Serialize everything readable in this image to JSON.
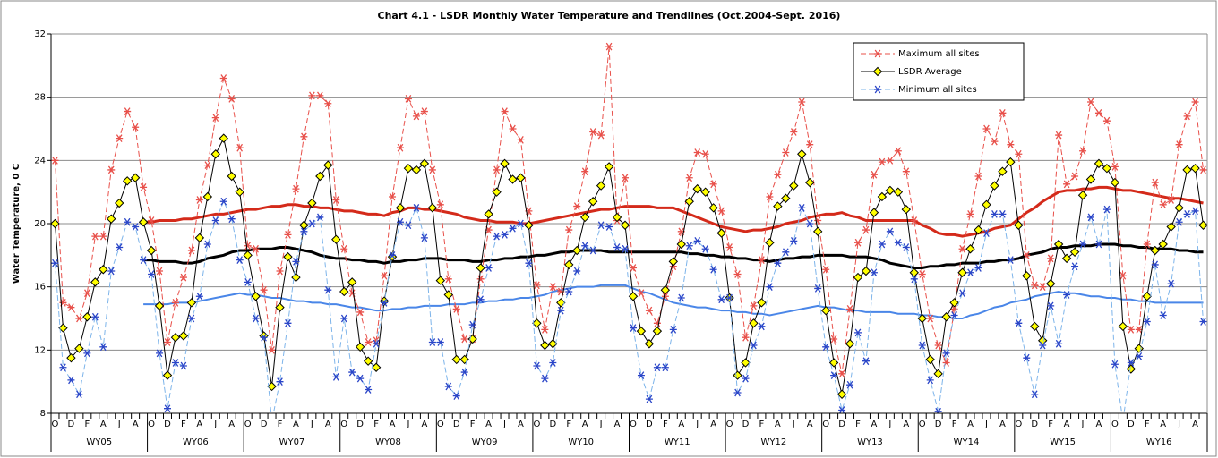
{
  "chart_data": {
    "type": "line",
    "title": "Chart 4.1 - LSDR Monthly Water Temperature and Trendlines (Oct.2004-Sept. 2016)",
    "y_label": "Water Temperature, 0 C",
    "categories": [
      "O",
      null,
      "D",
      null,
      "F",
      null,
      "A",
      null,
      "J",
      null,
      "A",
      null,
      "O",
      null,
      "D",
      null,
      "F",
      null,
      "A",
      null,
      "J",
      null,
      "A",
      null,
      "O",
      null,
      "D",
      null,
      "F",
      null,
      "A",
      null,
      "J",
      null,
      "A",
      null,
      "O",
      null,
      "D",
      null,
      "F",
      null,
      "A",
      null,
      "J",
      null,
      "A",
      null,
      "O",
      null,
      "D",
      null,
      "F",
      null,
      "A",
      null,
      "J",
      null,
      "A",
      null,
      "O",
      null,
      "D",
      null,
      "F",
      null,
      "A",
      null,
      "J",
      null,
      "A",
      null,
      "O",
      null,
      "D",
      null,
      "F",
      null,
      "A",
      null,
      "J",
      null,
      "A",
      null,
      "O",
      null,
      "D",
      null,
      "F",
      null,
      "A",
      null,
      "J",
      null,
      "A",
      null,
      "O",
      null,
      "D",
      null,
      "F",
      null,
      "A",
      null,
      "J",
      null,
      "A",
      null,
      "O",
      null,
      "D",
      null,
      "F",
      null,
      "A",
      null,
      "J",
      null,
      "A",
      null,
      "O",
      null,
      "D",
      null,
      "F",
      null,
      "A",
      null,
      "J",
      null,
      "A",
      null,
      "O",
      null,
      "D",
      null,
      "F",
      null,
      "A",
      null,
      "J",
      null,
      "A",
      null
    ],
    "group_labels": [
      "WY05",
      "WY06",
      "WY07",
      "WY08",
      "WY09",
      "WY10",
      "WY11",
      "WY12",
      "WY13",
      "WY14",
      "WY15",
      "WY16"
    ],
    "ylim": [
      8,
      32
    ],
    "yticks": [
      8,
      12,
      16,
      20,
      24,
      28,
      32
    ],
    "grid": true,
    "legend": "top-right",
    "series": [
      {
        "name": "Maximum all sites",
        "color": "#e8504a",
        "dash": true,
        "width": 1,
        "marker": "asterisk",
        "marker_color": "#e8504a",
        "values": [
          24.0,
          15.0,
          14.7,
          14.0,
          15.6,
          19.2,
          19.2,
          23.4,
          25.4,
          27.1,
          26.1,
          22.3,
          20.2,
          17.0,
          12.5,
          15.0,
          16.6,
          18.3,
          21.5,
          23.7,
          26.7,
          29.2,
          27.9,
          24.8,
          18.6,
          18.4,
          15.8,
          12.0,
          17.0,
          19.3,
          22.2,
          25.5,
          28.1,
          28.1,
          27.6,
          21.5,
          18.4,
          15.6,
          14.4,
          12.5,
          12.6,
          16.7,
          21.7,
          24.8,
          27.9,
          26.8,
          27.1,
          23.4,
          21.2,
          16.5,
          14.6,
          12.7,
          12.7,
          16.5,
          19.6,
          23.4,
          27.1,
          26.0,
          25.3,
          20.8,
          16.1,
          13.3,
          16.0,
          15.7,
          19.6,
          21.1,
          23.3,
          25.8,
          25.6,
          31.2,
          20.2,
          22.9,
          17.2,
          15.6,
          14.5,
          13.7,
          15.4,
          17.3,
          19.5,
          22.9,
          24.5,
          24.4,
          22.5,
          20.8,
          18.5,
          16.8,
          12.8,
          14.8,
          17.7,
          21.7,
          23.1,
          24.5,
          25.8,
          27.7,
          25.0,
          20.2,
          17.1,
          12.7,
          10.5,
          14.6,
          18.8,
          19.6,
          23.1,
          23.9,
          24.0,
          24.6,
          23.3,
          20.2,
          16.8,
          14.0,
          12.3,
          11.2,
          14.6,
          18.4,
          20.6,
          23.0,
          26.0,
          25.2,
          27.0,
          25.0,
          24.4,
          18.0,
          16.1,
          16.0,
          17.8,
          25.6,
          22.5,
          23.0,
          24.6,
          27.7,
          27.0,
          26.5,
          23.6,
          16.7,
          13.3,
          13.3,
          18.7,
          22.6,
          21.2,
          21.5,
          25.0,
          26.8,
          27.7,
          23.4
        ]
      },
      {
        "name": "LSDR Average",
        "color": "#000000",
        "dash": false,
        "width": 1,
        "marker": "diamond",
        "marker_color": "#000000",
        "marker_fill": "#ffff00",
        "values": [
          20.0,
          13.4,
          11.5,
          12.1,
          14.1,
          16.3,
          17.1,
          20.3,
          21.3,
          22.7,
          22.9,
          20.1,
          18.3,
          14.8,
          10.4,
          12.8,
          12.9,
          15.0,
          19.1,
          21.7,
          24.4,
          25.4,
          23.0,
          22.0,
          18.0,
          15.4,
          12.9,
          9.7,
          14.7,
          17.9,
          16.6,
          19.9,
          21.3,
          23.0,
          23.7,
          19.0,
          15.7,
          16.3,
          12.2,
          11.3,
          10.9,
          15.1,
          17.9,
          21.0,
          23.5,
          23.4,
          23.8,
          21.0,
          16.4,
          15.5,
          11.4,
          11.4,
          12.7,
          17.2,
          20.6,
          22.0,
          23.8,
          22.8,
          22.9,
          19.9,
          13.7,
          12.3,
          12.4,
          15.0,
          17.4,
          18.3,
          20.4,
          21.4,
          22.4,
          23.6,
          20.4,
          19.9,
          15.4,
          13.2,
          12.4,
          13.2,
          15.8,
          17.6,
          18.7,
          21.4,
          22.2,
          22.0,
          21.0,
          19.4,
          15.3,
          10.4,
          11.2,
          13.7,
          15.0,
          18.8,
          21.1,
          21.6,
          22.4,
          24.4,
          22.6,
          19.5,
          14.5,
          11.2,
          9.2,
          12.4,
          16.6,
          17.0,
          20.7,
          21.7,
          22.1,
          22.0,
          20.9,
          16.9,
          14.0,
          11.4,
          10.5,
          14.1,
          15.0,
          16.9,
          18.4,
          19.6,
          21.2,
          22.4,
          23.3,
          23.9,
          19.9,
          16.7,
          13.5,
          12.6,
          16.2,
          18.7,
          17.8,
          18.2,
          21.8,
          22.8,
          23.8,
          23.5,
          22.6,
          13.5,
          10.8,
          12.1,
          15.4,
          18.3,
          18.7,
          19.8,
          21.0,
          23.4,
          23.5,
          19.9
        ]
      },
      {
        "name": "Minimum all sites",
        "color": "#7db4ea",
        "dash": true,
        "width": 1,
        "marker": "asterisk",
        "marker_color": "#2a45c8",
        "values": [
          17.5,
          10.9,
          10.1,
          9.2,
          11.8,
          14.1,
          12.2,
          17.0,
          18.5,
          20.1,
          19.8,
          17.7,
          16.8,
          11.8,
          8.3,
          11.2,
          11.0,
          14.0,
          15.4,
          18.7,
          20.2,
          21.4,
          20.3,
          17.7,
          16.3,
          14.0,
          12.8,
          7.5,
          10.0,
          13.7,
          17.6,
          19.5,
          20.0,
          20.4,
          15.8,
          10.3,
          14.0,
          10.6,
          10.2,
          9.5,
          12.4,
          15.0,
          18.0,
          20.1,
          19.9,
          21.0,
          19.1,
          12.5,
          12.5,
          9.7,
          9.1,
          10.6,
          13.6,
          15.2,
          17.2,
          19.2,
          19.3,
          19.7,
          20.0,
          17.5,
          11.0,
          10.2,
          11.2,
          14.5,
          15.7,
          17.0,
          18.6,
          18.3,
          19.9,
          19.8,
          18.5,
          18.4,
          13.4,
          10.4,
          8.9,
          10.9,
          10.9,
          13.3,
          15.3,
          18.6,
          18.9,
          18.4,
          17.1,
          15.2,
          15.3,
          9.3,
          10.2,
          12.3,
          13.5,
          16.0,
          17.5,
          18.2,
          18.9,
          21.0,
          20.0,
          15.9,
          12.2,
          10.4,
          8.2,
          9.8,
          13.1,
          11.3,
          16.9,
          18.7,
          19.5,
          18.8,
          18.5,
          16.5,
          12.3,
          10.1,
          8.1,
          11.8,
          14.2,
          15.6,
          16.9,
          17.2,
          19.4,
          20.6,
          20.6,
          17.7,
          13.7,
          11.5,
          9.2,
          12.3,
          14.8,
          12.4,
          15.5,
          17.3,
          18.7,
          20.4,
          18.7,
          20.9,
          11.1,
          7.5,
          11.2,
          11.6,
          13.8,
          17.4,
          14.2,
          16.2,
          20.1,
          20.6,
          20.8,
          13.8
        ]
      },
      {
        "color": "#d42a1a",
        "dash": false,
        "width": 3,
        "values": [
          null,
          null,
          null,
          null,
          null,
          null,
          null,
          null,
          null,
          null,
          null,
          20.1,
          20.1,
          20.2,
          20.2,
          20.2,
          20.3,
          20.3,
          20.4,
          20.5,
          20.6,
          20.6,
          20.7,
          20.8,
          20.9,
          20.9,
          21.0,
          21.1,
          21.1,
          21.2,
          21.2,
          21.1,
          21.1,
          21.0,
          21.0,
          20.9,
          20.8,
          20.8,
          20.7,
          20.6,
          20.6,
          20.5,
          20.7,
          20.8,
          21.0,
          21.0,
          20.9,
          20.9,
          20.8,
          20.7,
          20.6,
          20.4,
          20.3,
          20.2,
          20.2,
          20.1,
          20.1,
          20.1,
          20.0,
          20.0,
          20.1,
          20.2,
          20.3,
          20.4,
          20.5,
          20.6,
          20.7,
          20.8,
          20.9,
          20.9,
          21.0,
          21.1,
          21.1,
          21.1,
          21.1,
          21.0,
          21.0,
          21.0,
          20.8,
          20.6,
          20.4,
          20.2,
          20.0,
          19.8,
          19.7,
          19.6,
          19.5,
          19.6,
          19.6,
          19.7,
          19.8,
          20.0,
          20.1,
          20.2,
          20.4,
          20.5,
          20.6,
          20.6,
          20.7,
          20.5,
          20.4,
          20.2,
          20.2,
          20.2,
          20.2,
          20.2,
          20.2,
          20.2,
          19.9,
          19.7,
          19.4,
          19.3,
          19.3,
          19.2,
          19.3,
          19.4,
          19.5,
          19.7,
          19.8,
          19.9,
          20.3,
          20.7,
          21.0,
          21.4,
          21.7,
          22.0,
          22.1,
          22.1,
          22.2,
          22.2,
          22.3,
          22.3,
          22.2,
          22.1,
          22.1,
          22.0,
          21.9,
          21.8,
          21.7,
          21.6,
          21.6,
          21.5,
          21.4,
          21.3
        ]
      },
      {
        "color": "#000000",
        "dash": false,
        "width": 3,
        "values": [
          null,
          null,
          null,
          null,
          null,
          null,
          null,
          null,
          null,
          null,
          null,
          17.7,
          17.7,
          17.6,
          17.6,
          17.6,
          17.5,
          17.5,
          17.6,
          17.8,
          17.9,
          18.0,
          18.2,
          18.3,
          18.3,
          18.4,
          18.4,
          18.4,
          18.5,
          18.5,
          18.4,
          18.3,
          18.2,
          18.0,
          17.9,
          17.8,
          17.8,
          17.7,
          17.7,
          17.6,
          17.6,
          17.5,
          17.6,
          17.6,
          17.7,
          17.7,
          17.8,
          17.8,
          17.8,
          17.7,
          17.7,
          17.7,
          17.6,
          17.6,
          17.7,
          17.7,
          17.8,
          17.8,
          17.9,
          17.9,
          18.0,
          18.0,
          18.1,
          18.2,
          18.2,
          18.3,
          18.3,
          18.3,
          18.3,
          18.2,
          18.2,
          18.2,
          18.2,
          18.2,
          18.2,
          18.2,
          18.2,
          18.2,
          18.2,
          18.1,
          18.1,
          18.0,
          18.0,
          17.9,
          17.9,
          17.8,
          17.8,
          17.7,
          17.7,
          17.6,
          17.7,
          17.8,
          17.8,
          17.9,
          17.9,
          18.0,
          18.0,
          18.0,
          18.0,
          17.9,
          17.9,
          17.9,
          17.8,
          17.7,
          17.5,
          17.4,
          17.3,
          17.2,
          17.2,
          17.3,
          17.3,
          17.4,
          17.4,
          17.5,
          17.5,
          17.5,
          17.6,
          17.6,
          17.7,
          17.7,
          17.8,
          18.0,
          18.1,
          18.2,
          18.4,
          18.5,
          18.5,
          18.6,
          18.6,
          18.6,
          18.7,
          18.7,
          18.7,
          18.6,
          18.6,
          18.5,
          18.5,
          18.4,
          18.4,
          18.4,
          18.3,
          18.3,
          18.2,
          18.2
        ]
      },
      {
        "color": "#4a86e8",
        "dash": false,
        "width": 2,
        "values": [
          null,
          null,
          null,
          null,
          null,
          null,
          null,
          null,
          null,
          null,
          null,
          14.9,
          14.9,
          14.9,
          14.9,
          15.0,
          15.0,
          15.0,
          15.1,
          15.2,
          15.3,
          15.4,
          15.5,
          15.6,
          15.5,
          15.5,
          15.4,
          15.3,
          15.3,
          15.2,
          15.1,
          15.1,
          15.0,
          15.0,
          14.9,
          14.9,
          14.8,
          14.7,
          14.7,
          14.6,
          14.5,
          14.5,
          14.6,
          14.6,
          14.7,
          14.7,
          14.8,
          14.8,
          14.8,
          14.9,
          14.9,
          14.9,
          15.0,
          15.0,
          15.1,
          15.1,
          15.2,
          15.2,
          15.3,
          15.3,
          15.4,
          15.5,
          15.7,
          15.8,
          15.9,
          16.0,
          16.0,
          16.0,
          16.1,
          16.1,
          16.1,
          16.1,
          15.9,
          15.7,
          15.6,
          15.4,
          15.2,
          15.0,
          14.9,
          14.8,
          14.7,
          14.7,
          14.6,
          14.5,
          14.5,
          14.4,
          14.4,
          14.3,
          14.3,
          14.2,
          14.3,
          14.4,
          14.5,
          14.6,
          14.7,
          14.8,
          14.7,
          14.7,
          14.6,
          14.5,
          14.5,
          14.4,
          14.4,
          14.4,
          14.4,
          14.3,
          14.3,
          14.3,
          14.2,
          14.2,
          14.1,
          14.1,
          14.0,
          14.0,
          14.2,
          14.3,
          14.5,
          14.7,
          14.8,
          15.0,
          15.1,
          15.2,
          15.4,
          15.5,
          15.6,
          15.7,
          15.6,
          15.6,
          15.5,
          15.4,
          15.4,
          15.3,
          15.3,
          15.2,
          15.2,
          15.1,
          15.1,
          15.0,
          15.0,
          15.0,
          15.0,
          15.0,
          15.0,
          15.0
        ]
      }
    ]
  }
}
